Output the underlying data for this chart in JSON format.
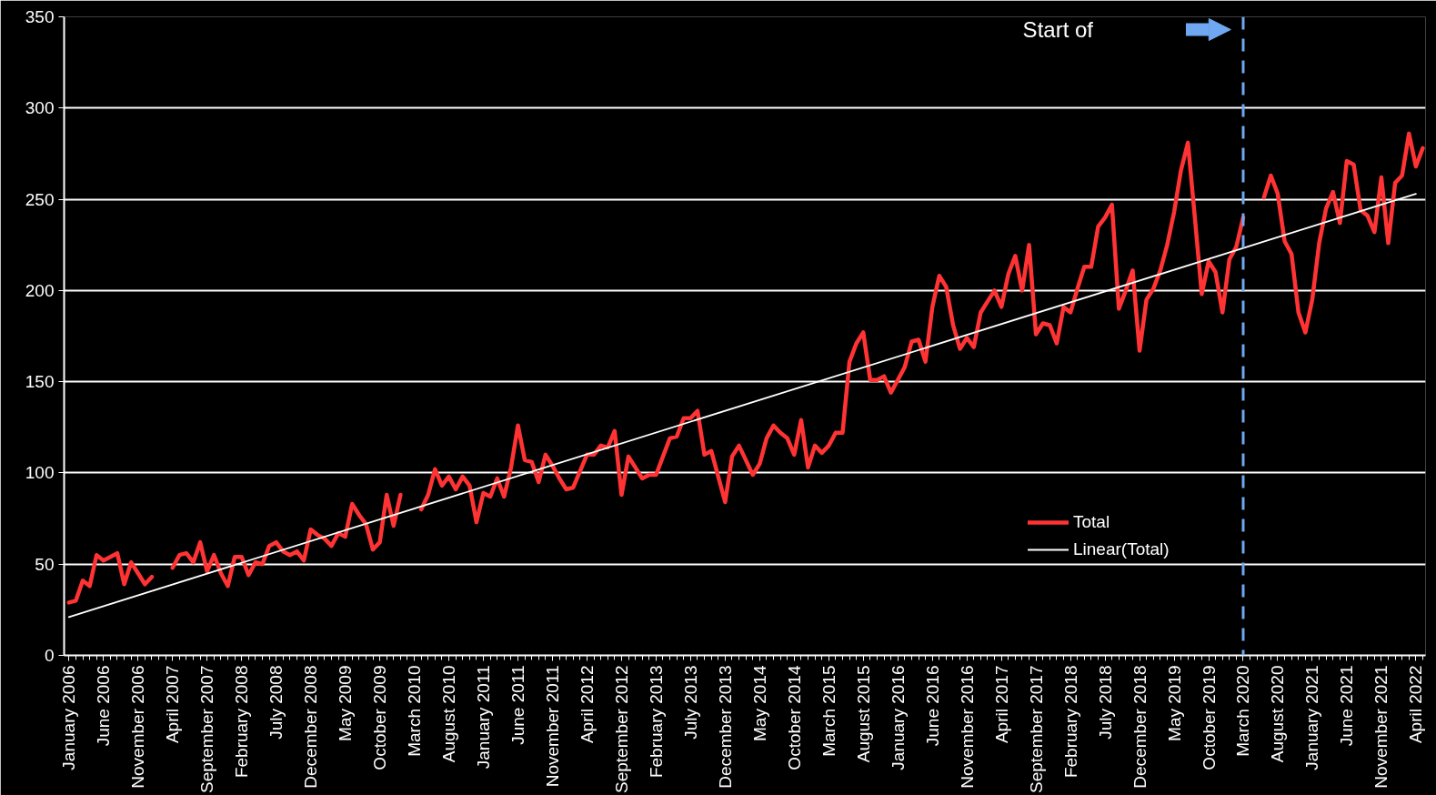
{
  "chart_data": {
    "type": "line",
    "categories": [
      "January 2006",
      null,
      null,
      null,
      null,
      "June 2006",
      null,
      null,
      null,
      null,
      "November 2006",
      null,
      null,
      null,
      null,
      "April 2007",
      null,
      null,
      null,
      null,
      "September 2007",
      null,
      null,
      null,
      null,
      "February 2008",
      null,
      null,
      null,
      null,
      "July 2008",
      null,
      null,
      null,
      null,
      "December 2008",
      null,
      null,
      null,
      null,
      "May 2009",
      null,
      null,
      null,
      null,
      "October 2009",
      null,
      null,
      null,
      null,
      "March 2010",
      null,
      null,
      null,
      null,
      "August 2010",
      null,
      null,
      null,
      null,
      "January 2011",
      null,
      null,
      null,
      null,
      "June 2011",
      null,
      null,
      null,
      null,
      "November 2011",
      null,
      null,
      null,
      null,
      "April 2012",
      null,
      null,
      null,
      null,
      "September 2012",
      null,
      null,
      null,
      null,
      "February 2013",
      null,
      null,
      null,
      null,
      "July 2013",
      null,
      null,
      null,
      null,
      "December 2013",
      null,
      null,
      null,
      null,
      "May 2014",
      null,
      null,
      null,
      null,
      "October 2014",
      null,
      null,
      null,
      null,
      "March 2015",
      null,
      null,
      null,
      null,
      "August 2015",
      null,
      null,
      null,
      null,
      "January 2016",
      null,
      null,
      null,
      null,
      "June 2016",
      null,
      null,
      null,
      null,
      "November 2016",
      null,
      null,
      null,
      null,
      "April 2017",
      null,
      null,
      null,
      null,
      "September 2017",
      null,
      null,
      null,
      null,
      "February 2018",
      null,
      null,
      null,
      null,
      "July 2018",
      null,
      null,
      null,
      null,
      "December 2018",
      null,
      null,
      null,
      null,
      "May 2019",
      null,
      null,
      null,
      null,
      "October 2019",
      null,
      null,
      null,
      null,
      "March 2020",
      null,
      null,
      null,
      null,
      "August 2020",
      null,
      null,
      null,
      null,
      "January 2021",
      null,
      null,
      null,
      null,
      "June 2021",
      null,
      null,
      null,
      null,
      "November 2021",
      null,
      null,
      null,
      null,
      "April 2022",
      null
    ],
    "series": [
      {
        "name": "Total",
        "color": "#ff3333",
        "values": [
          29,
          30,
          41,
          38,
          55,
          52,
          54,
          56,
          39,
          51,
          45,
          39,
          43,
          null,
          null,
          48,
          55,
          56,
          51,
          62,
          46,
          55,
          45,
          38,
          54,
          54,
          44,
          51,
          50,
          60,
          62,
          57,
          55,
          57,
          52,
          69,
          66,
          64,
          60,
          67,
          65,
          83,
          77,
          72,
          58,
          62,
          88,
          71,
          88,
          null,
          null,
          80,
          88,
          102,
          93,
          98,
          91,
          98,
          93,
          73,
          89,
          87,
          97,
          87,
          103,
          126,
          107,
          106,
          95,
          110,
          104,
          97,
          91,
          92,
          101,
          110,
          110,
          115,
          114,
          123,
          88,
          109,
          103,
          97,
          99,
          99,
          109,
          119,
          120,
          130,
          130,
          134,
          110,
          112,
          98,
          84,
          109,
          115,
          107,
          99,
          105,
          119,
          126,
          122,
          119,
          110,
          129,
          103,
          115,
          111,
          115,
          122,
          122,
          161,
          171,
          177,
          151,
          151,
          153,
          144,
          151,
          158,
          172,
          173,
          161,
          191,
          208,
          202,
          181,
          168,
          174,
          169,
          188,
          194,
          200,
          191,
          209,
          219,
          200,
          225,
          176,
          182,
          181,
          171,
          191,
          188,
          201,
          213,
          213,
          235,
          240,
          247,
          190,
          200,
          211,
          167,
          195,
          201,
          211,
          225,
          243,
          266,
          281,
          240,
          198,
          216,
          210,
          188,
          217,
          224,
          240,
          null,
          null,
          251,
          263,
          253,
          227,
          220,
          188,
          177,
          195,
          226,
          245,
          254,
          237,
          271,
          269,
          244,
          241,
          232,
          262,
          226,
          259,
          263,
          286,
          268,
          278
        ]
      },
      {
        "name": "Linear(Total)",
        "type": "line",
        "color": "#ffffff",
        "x": [
          "January 2006",
          "April 2022"
        ],
        "values": [
          21,
          253
        ]
      }
    ],
    "ylim": [
      0,
      350
    ],
    "yticks": [
      0,
      50,
      100,
      150,
      200,
      250,
      300,
      350
    ],
    "grid": "y",
    "legend": "right",
    "annotations": [
      "Start of"
    ],
    "ref_lines": [
      {
        "axis": "x",
        "value": "March 2020",
        "color": "#6fa8f0",
        "line_style": "dashed"
      }
    ]
  }
}
